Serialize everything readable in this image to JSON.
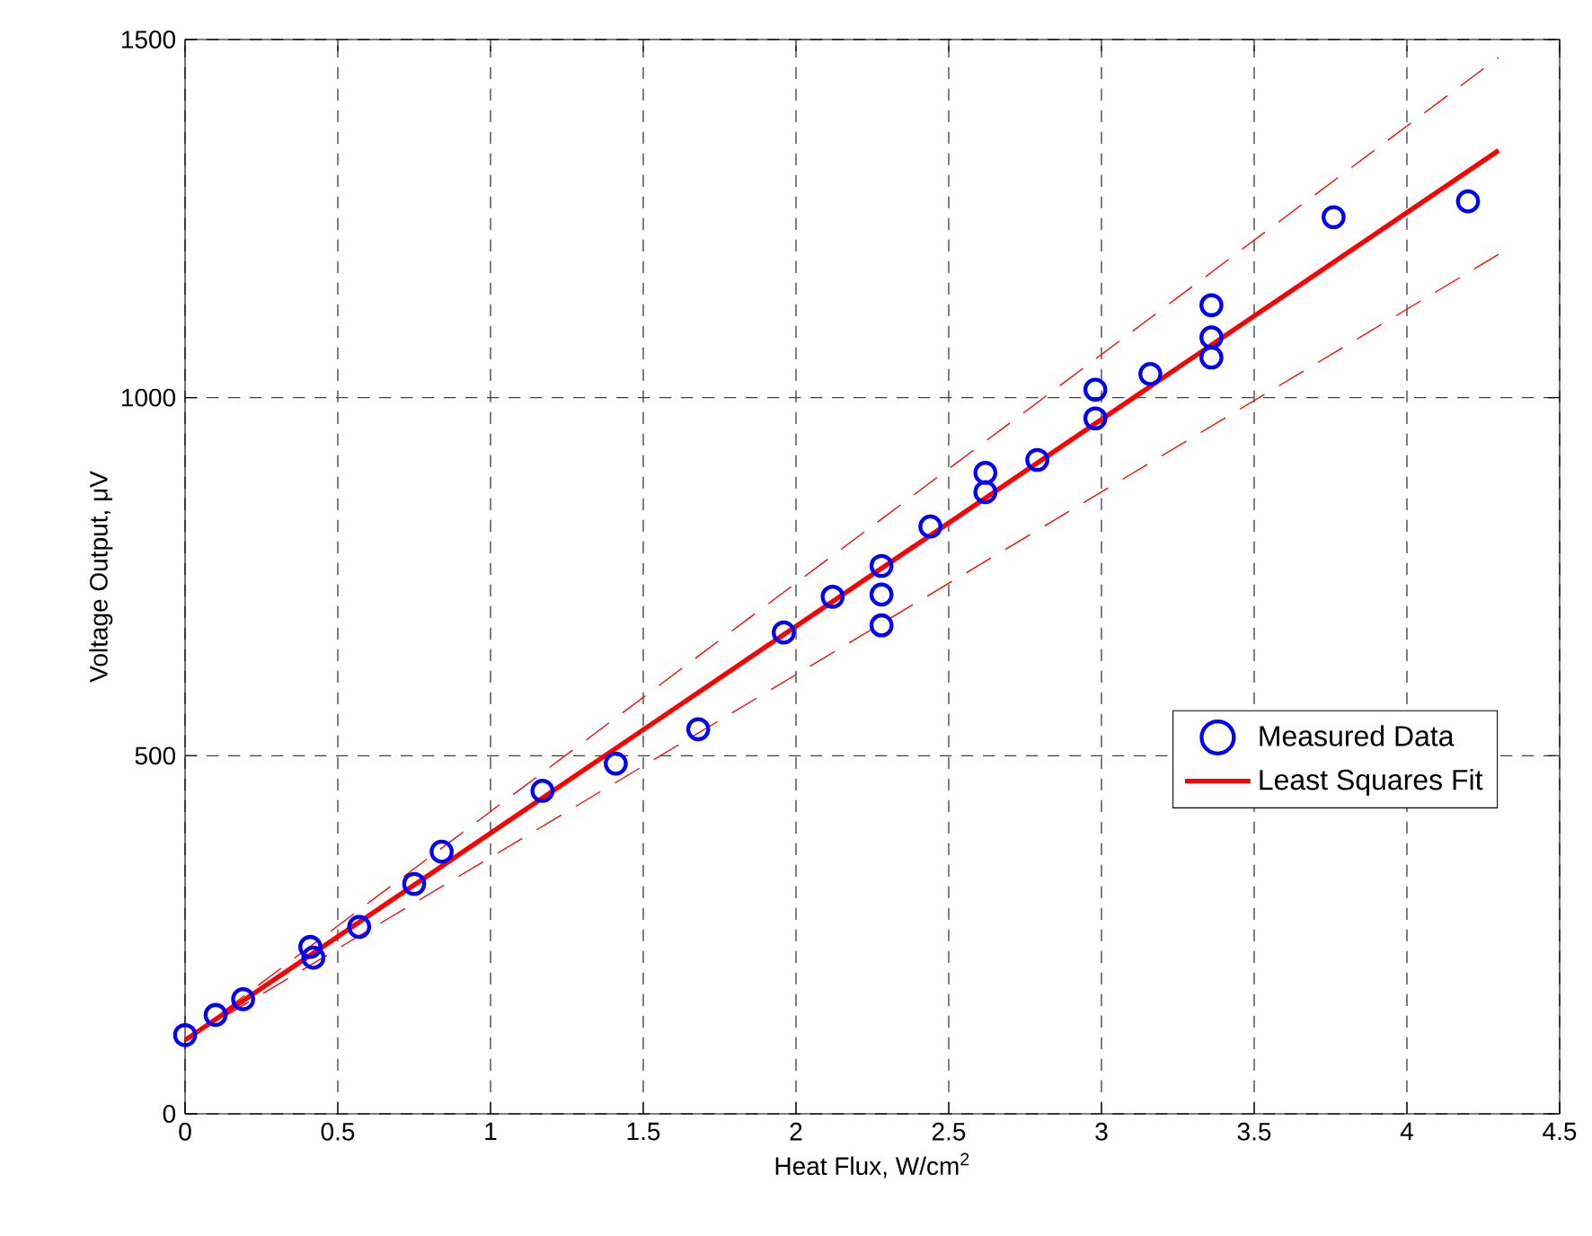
{
  "chart_data": {
    "type": "scatter",
    "xlabel": "Heat Flux, W/cm$^{2}$",
    "ylabel": "Voltage Output, μV",
    "xlim": [
      0,
      4.5
    ],
    "ylim": [
      0,
      1500
    ],
    "xticks": [
      0,
      0.5,
      1,
      1.5,
      2,
      2.5,
      3,
      3.5,
      4,
      4.5
    ],
    "yticks": [
      0,
      500,
      1000,
      1500
    ],
    "grid": true,
    "legend": "right",
    "series": [
      {
        "name": "Measured Data",
        "marker": "circle",
        "color": "#0000ff",
        "x": [
          0,
          0.1,
          0.19,
          0.41,
          0.42,
          0.57,
          0.75,
          0.84,
          1.17,
          1.41,
          1.68,
          1.96,
          2.12,
          2.28,
          2.28,
          2.28,
          2.44,
          2.62,
          2.62,
          2.79,
          2.98,
          2.98,
          3.16,
          3.36,
          3.36,
          3.36,
          3.76,
          4.2
        ],
        "values": [
          110,
          138,
          160,
          233,
          218,
          261,
          321,
          366,
          451,
          489,
          537,
          672,
          722,
          765,
          725,
          682,
          820,
          868,
          895,
          913,
          971,
          1011,
          1033,
          1056,
          1084,
          1129,
          1252,
          1274
        ]
      },
      {
        "name": "Least Squares Fit",
        "type": "line",
        "line_style": "solid",
        "color": "#ff0000",
        "x": [
          0,
          4.3
        ],
        "values": [
          103,
          1345
        ]
      },
      {
        "type": "line",
        "line_style": "dashed",
        "color": "#ff0000",
        "x": [
          0,
          4.3
        ],
        "values": [
          103,
          1475
        ]
      },
      {
        "type": "line",
        "line_style": "dashed",
        "color": "#ff0000",
        "x": [
          0,
          4.3
        ],
        "values": [
          103,
          1200
        ]
      }
    ]
  }
}
